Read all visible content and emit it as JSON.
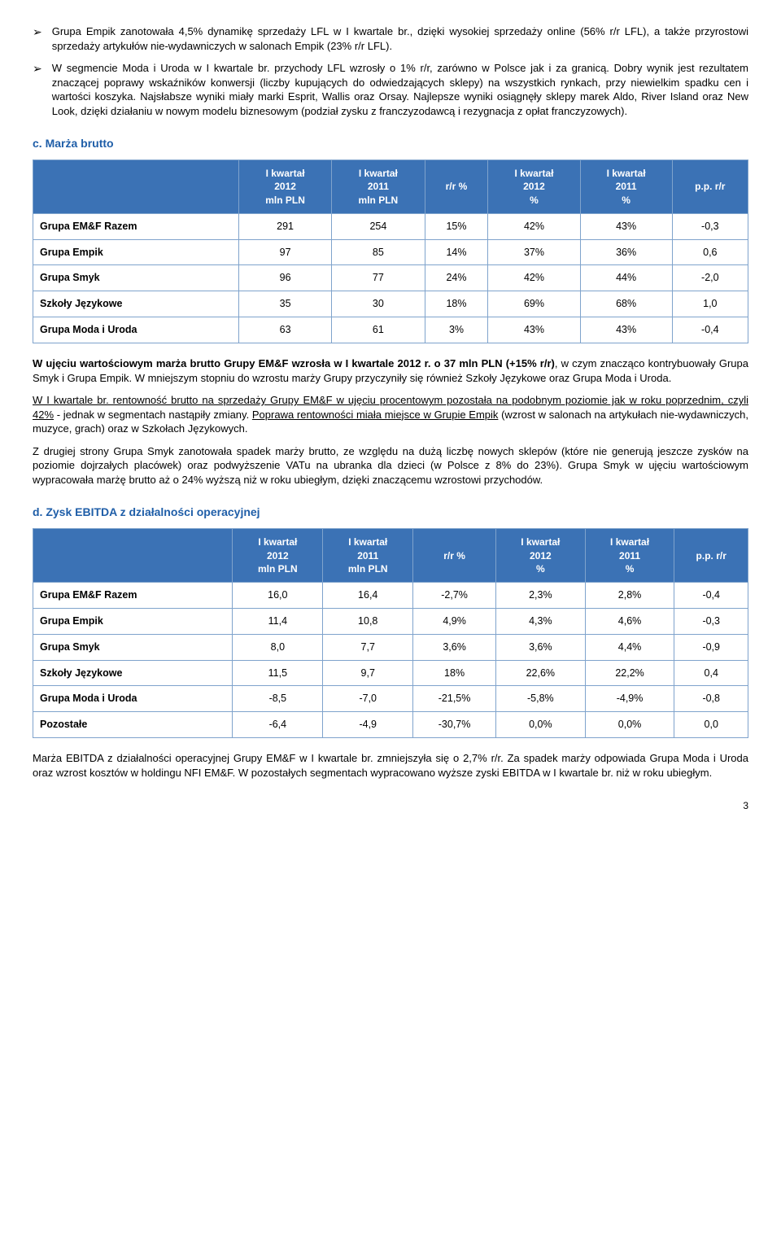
{
  "bullets": [
    {
      "text": "Grupa Empik zanotowała 4,5% dynamikę sprzedaży LFL w I kwartale br., dzięki wysokiej sprzedaży online (56% r/r LFL), a także przyrostowi sprzedaży artykułów nie-wydawniczych w salonach Empik (23% r/r LFL)."
    },
    {
      "text": "W segmencie Moda i Uroda w I kwartale br. przychody LFL wzrosły o 1% r/r, zarówno w Polsce jak i za granicą. Dobry wynik jest rezultatem znaczącej poprawy wskaźników konwersji (liczby kupujących do odwiedzających sklepy) na wszystkich rynkach, przy niewielkim spadku cen i wartości koszyka. Najsłabsze wyniki miały marki Esprit, Wallis oraz Orsay. Najlepsze wyniki osiągnęły sklepy marek Aldo, River Island oraz New Look, dzięki działaniu w nowym modelu biznesowym (podział zysku z franczyzodawcą i rezygnacja z opłat franczyzowych)."
    }
  ],
  "section_c": {
    "heading": "c.   Marża brutto",
    "table": {
      "headers": [
        "",
        "I kwartał 2012 mln PLN",
        "I kwartał 2011 mln PLN",
        "r/r %",
        "I kwartał 2012 %",
        "I kwartał 2011 %",
        "p.p. r/r"
      ],
      "rows": [
        [
          "Grupa EM&F Razem",
          "291",
          "254",
          "15%",
          "42%",
          "43%",
          "-0,3"
        ],
        [
          "Grupa Empik",
          "97",
          "85",
          "14%",
          "37%",
          "36%",
          "0,6"
        ],
        [
          "Grupa Smyk",
          "96",
          "77",
          "24%",
          "42%",
          "44%",
          "-2,0"
        ],
        [
          "Szkoły Językowe",
          "35",
          "30",
          "18%",
          "69%",
          "68%",
          "1,0"
        ],
        [
          "Grupa Moda i Uroda",
          "63",
          "61",
          "3%",
          "43%",
          "43%",
          "-0,4"
        ]
      ]
    },
    "p1_pre": "W ujęciu wartościowym marża brutto Grupy EM&F wzrosła w I kwartale 2012 r. o 37 mln PLN (+15% r/r)",
    "p1_post": ", w czym znacząco kontrybuowały Grupa Smyk i Grupa Empik. W mniejszym stopniu do wzrostu marży Grupy przyczyniły się również Szkoły Językowe oraz Grupa Moda i Uroda.",
    "p2_u1": "W I kwartale br. rentowność brutto na sprzedaży Grupy EM&F w ujęciu procentowym pozostała na podobnym poziomie jak w roku poprzednim, czyli 42%",
    "p2_mid": " - jednak w segmentach nastąpiły zmiany. ",
    "p2_u2": "Poprawa rentowności miała miejsce w Grupie Empik",
    "p2_post": " (wzrost w salonach na artykułach nie-wydawniczych, muzyce, grach) oraz w Szkołach Językowych.",
    "p3": "Z drugiej strony Grupa Smyk zanotowała spadek marży brutto, ze względu na dużą liczbę nowych sklepów (które nie generują jeszcze zysków na poziomie dojrzałych placówek) oraz podwyższenie VATu na ubranka dla dzieci (w Polsce z 8% do 23%). Grupa Smyk w ujęciu wartościowym wypracowała marżę brutto aż o 24% wyższą niż w roku ubiegłym, dzięki znaczącemu wzrostowi przychodów."
  },
  "section_d": {
    "heading": "d.   Zysk EBITDA z działalności operacyjnej",
    "table": {
      "headers": [
        "",
        "I kwartał 2012 mln PLN",
        "I kwartał 2011 mln PLN",
        "r/r %",
        "I kwartał 2012 %",
        "I kwartał 2011 %",
        "p.p. r/r"
      ],
      "rows": [
        [
          "Grupa EM&F Razem",
          "16,0",
          "16,4",
          "-2,7%",
          "2,3%",
          "2,8%",
          "-0,4"
        ],
        [
          "Grupa Empik",
          "11,4",
          "10,8",
          "4,9%",
          "4,3%",
          "4,6%",
          "-0,3"
        ],
        [
          "Grupa Smyk",
          "8,0",
          "7,7",
          "3,6%",
          "3,6%",
          "4,4%",
          "-0,9"
        ],
        [
          "Szkoły Językowe",
          "11,5",
          "9,7",
          "18%",
          "22,6%",
          "22,2%",
          "0,4"
        ],
        [
          "Grupa Moda i Uroda",
          "-8,5",
          "-7,0",
          "-21,5%",
          "-5,8%",
          "-4,9%",
          "-0,8"
        ],
        [
          "Pozostałe",
          "-6,4",
          "-4,9",
          "-30,7%",
          "0,0%",
          "0,0%",
          "0,0"
        ]
      ]
    },
    "p1": "Marża EBITDA z działalności operacyjnej Grupy EM&F w I kwartale br. zmniejszyła się o 2,7% r/r. Za spadek marży odpowiada Grupa Moda i Uroda oraz wzrost kosztów w holdingu NFI EM&F. W pozostałych segmentach wypracowano wyższe zyski EBITDA w I kwartale br. niż w roku ubiegłym."
  },
  "page_number": "3"
}
